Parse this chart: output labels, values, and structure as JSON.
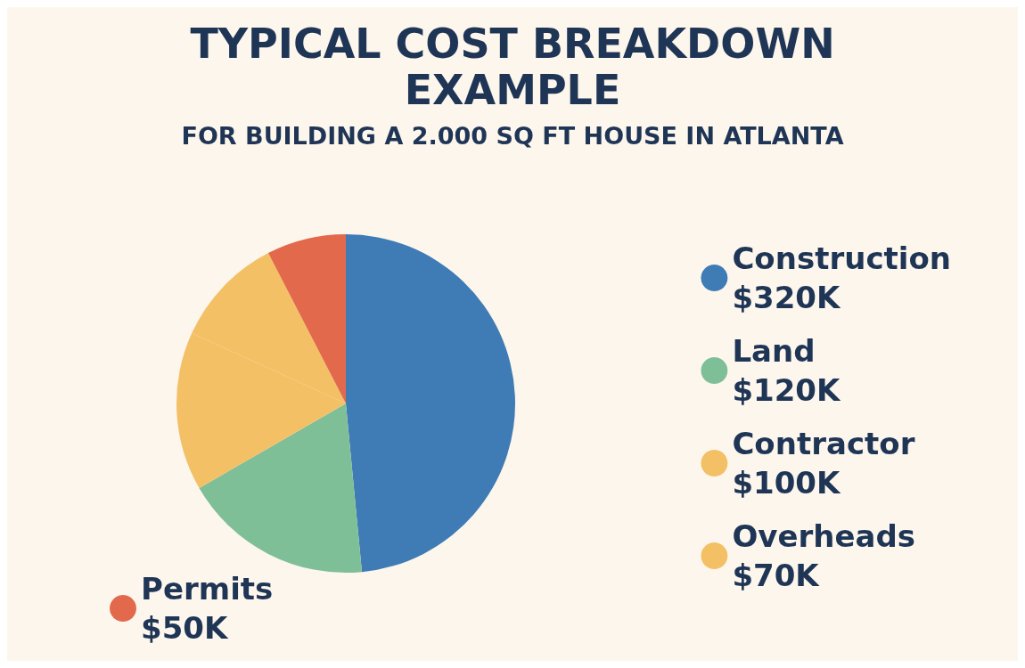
{
  "chart_data": {
    "type": "pie",
    "title": "TYPICAL COST BREAKDOWN\nEXAMPLE",
    "subtitle": "FOR BUILDING A 2.000 SQ FT HOUSE IN ATLANTA",
    "categories": [
      "Construction",
      "Land",
      "Contractor",
      "Overheads",
      "Permits"
    ],
    "values": [
      320,
      120,
      100,
      70,
      50
    ],
    "value_labels": [
      "$320K",
      "$120K",
      "$100K",
      "$70K",
      "$50K"
    ],
    "colors": [
      "#3f7cb5",
      "#7fbf98",
      "#f4c066",
      "#f4c066",
      "#e2694c"
    ],
    "legend": "right"
  }
}
